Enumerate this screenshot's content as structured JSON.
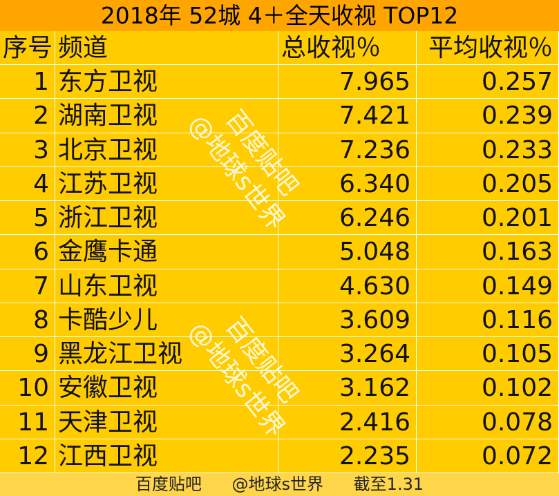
{
  "title": "2018年 52城 4＋全天收视 TOP12",
  "table": {
    "header": [
      "序号",
      "频道",
      "总收视％",
      "平均收视％"
    ],
    "rows": [
      [
        1,
        "东方卫视",
        "7.965",
        "0.257"
      ],
      [
        2,
        "湖南卫视",
        "7.421",
        "0.239"
      ],
      [
        3,
        "北京卫视",
        "7.236",
        "0.233"
      ],
      [
        4,
        "江苏卫视",
        "6.340",
        "0.205"
      ],
      [
        5,
        "浙江卫视",
        "6.246",
        "0.201"
      ],
      [
        6,
        "金鹰卡通",
        "5.048",
        "0.163"
      ],
      [
        7,
        "山东卫视",
        "4.630",
        "0.149"
      ],
      [
        8,
        "卡酷少儿",
        "3.609",
        "0.116"
      ],
      [
        9,
        "黑龙江卫视",
        "3.264",
        "0.105"
      ],
      [
        10,
        "安徽卫视",
        "3.162",
        "0.102"
      ],
      [
        11,
        "天津卫视",
        "2.416",
        "0.078"
      ],
      [
        12,
        "江西卫视",
        "2.235",
        "0.072"
      ]
    ]
  },
  "watermark": [
    "百度贴吧",
    "@地球s世界"
  ],
  "footer": [
    "百度贴吧",
    "@地球s世界",
    "截至1.31"
  ]
}
